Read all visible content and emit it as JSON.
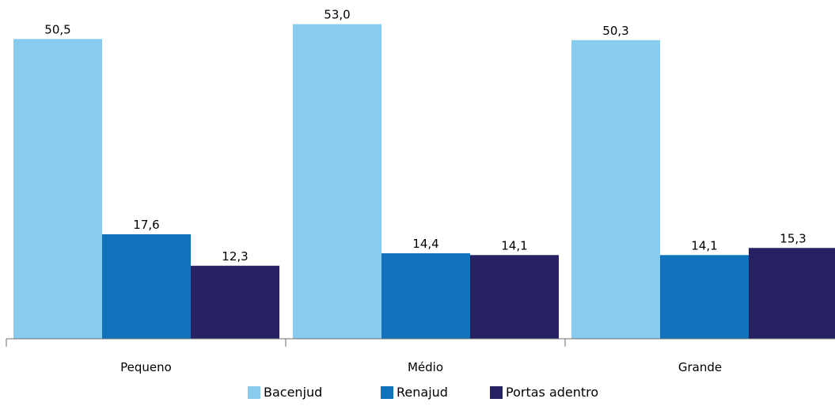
{
  "chart_data": {
    "type": "bar",
    "categories": [
      "Pequeno",
      "Médio",
      "Grande"
    ],
    "series": [
      {
        "name": "Bacenjud",
        "color": "#87CBEF",
        "values": [
          50.5,
          53.0,
          50.3
        ],
        "labels": [
          "50,5",
          "53,0",
          "50,3"
        ]
      },
      {
        "name": "Renajud",
        "color": "#1173BC",
        "values": [
          17.6,
          14.4,
          14.1
        ],
        "labels": [
          "17,6",
          "14,4",
          "14,1"
        ]
      },
      {
        "name": "Portas adentro",
        "color": "#262160",
        "values": [
          12.3,
          14.1,
          15.3
        ],
        "labels": [
          "12,3",
          "14,1",
          "15,3"
        ]
      }
    ],
    "title": "",
    "xlabel": "",
    "ylabel": "",
    "ylim": [
      0,
      55
    ],
    "grid": false,
    "legend_position": "bottom"
  }
}
